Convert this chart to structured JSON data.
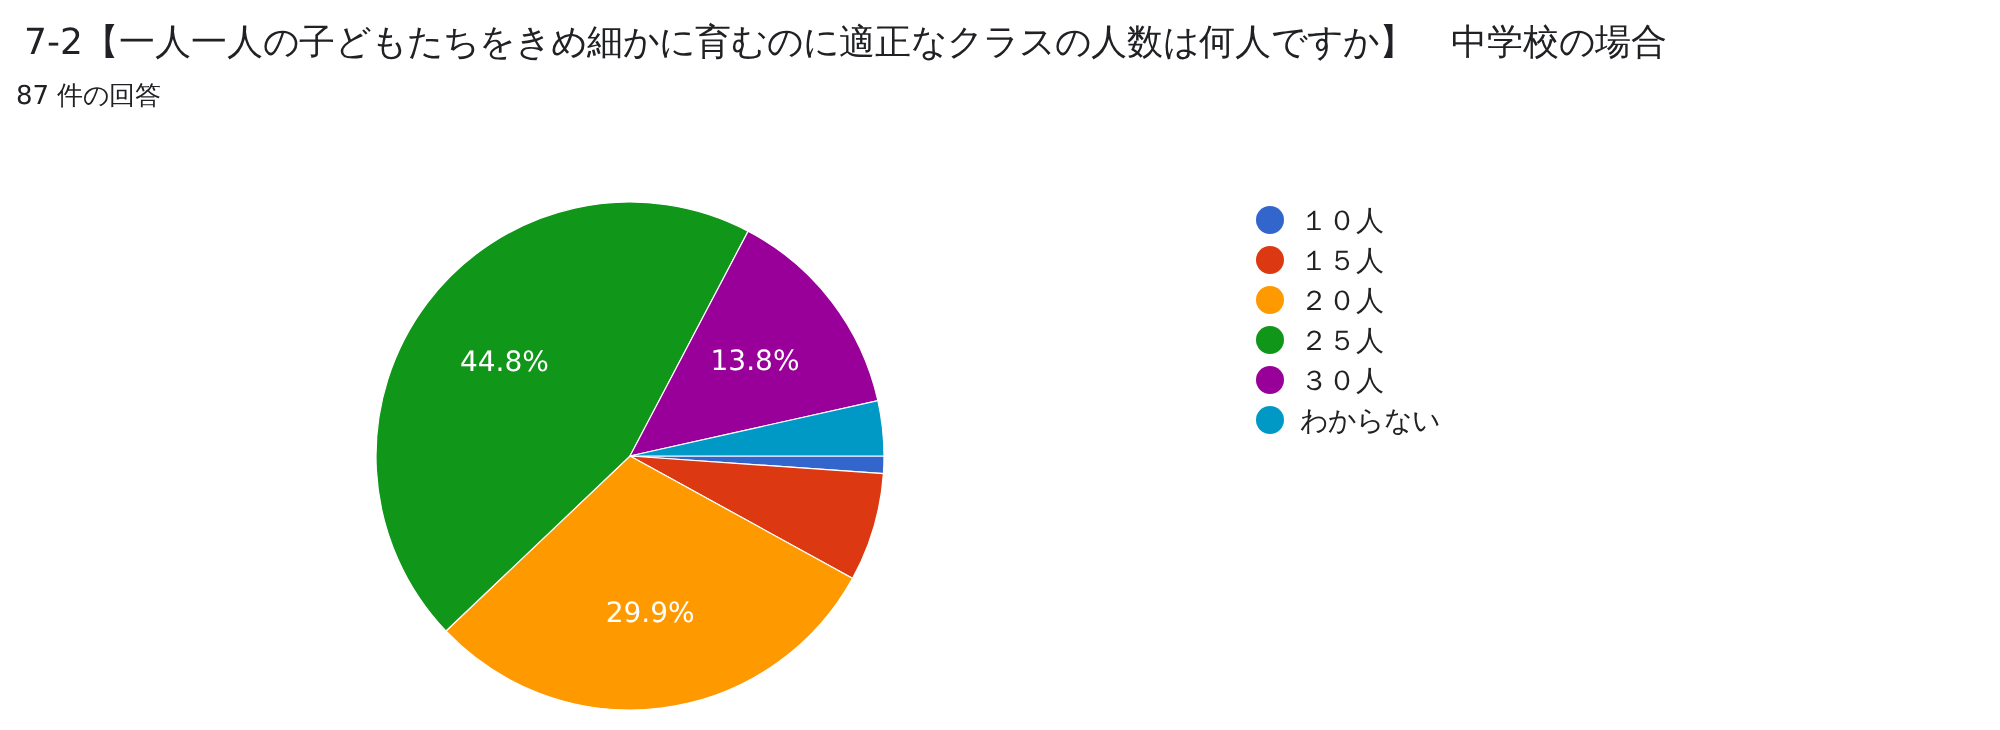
{
  "chart_data": {
    "type": "pie",
    "title": "7-2【一人一人の子どもたちをきめ細かに育むのに適正なクラスの人数は何人ですか】　中学校の場合",
    "subtitle": "87 件の回答",
    "categories": [
      "１０人",
      "１５人",
      "２０人",
      "２５人",
      "３０人",
      "わからない"
    ],
    "values": [
      1.1,
      6.9,
      29.9,
      44.8,
      13.8,
      3.5
    ],
    "colors": [
      "#3366cc",
      "#dc3912",
      "#ff9900",
      "#109618",
      "#990099",
      "#0099c6"
    ],
    "value_labels": [
      null,
      null,
      "29.9%",
      "44.8%",
      "13.8%",
      null
    ],
    "legend": "right"
  }
}
